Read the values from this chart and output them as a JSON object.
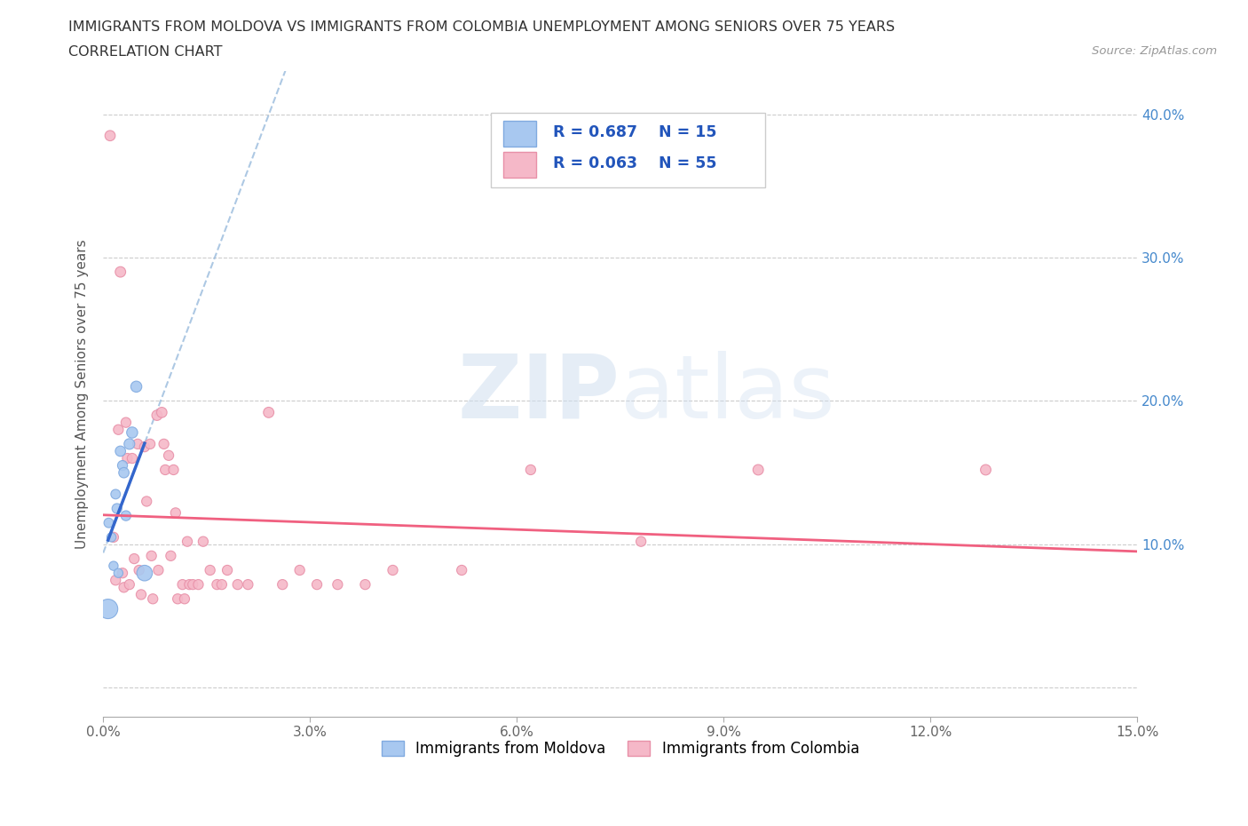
{
  "title_line1": "IMMIGRANTS FROM MOLDOVA VS IMMIGRANTS FROM COLOMBIA UNEMPLOYMENT AMONG SENIORS OVER 75 YEARS",
  "title_line2": "CORRELATION CHART",
  "source": "Source: ZipAtlas.com",
  "ylabel": "Unemployment Among Seniors over 75 years",
  "xlim": [
    0.0,
    0.15
  ],
  "ylim": [
    -0.02,
    0.43
  ],
  "moldova_color": "#a8c8f0",
  "colombia_color": "#f5b8c8",
  "moldova_edge": "#80aae0",
  "colombia_edge": "#e890a8",
  "trend_moldova_color": "#3366cc",
  "trend_colombia_color": "#f06080",
  "dashed_line_color": "#99bbdd",
  "R_moldova": 0.687,
  "N_moldova": 15,
  "R_colombia": 0.063,
  "N_colombia": 55,
  "legend_label_moldova": "Immigrants from Moldova",
  "legend_label_colombia": "Immigrants from Colombia",
  "watermark_zip": "ZIP",
  "watermark_atlas": "atlas",
  "moldova_scatter": [
    [
      0.0008,
      0.115
    ],
    [
      0.0012,
      0.105
    ],
    [
      0.0015,
      0.085
    ],
    [
      0.0018,
      0.135
    ],
    [
      0.002,
      0.125
    ],
    [
      0.0022,
      0.08
    ],
    [
      0.0025,
      0.165
    ],
    [
      0.0028,
      0.155
    ],
    [
      0.003,
      0.15
    ],
    [
      0.0033,
      0.12
    ],
    [
      0.0038,
      0.17
    ],
    [
      0.0042,
      0.178
    ],
    [
      0.0048,
      0.21
    ],
    [
      0.006,
      0.08
    ],
    [
      0.0007,
      0.055
    ]
  ],
  "moldova_sizes": [
    60,
    55,
    55,
    60,
    65,
    55,
    70,
    65,
    70,
    65,
    75,
    80,
    80,
    160,
    250
  ],
  "colombia_scatter": [
    [
      0.001,
      0.385
    ],
    [
      0.0015,
      0.105
    ],
    [
      0.0018,
      0.075
    ],
    [
      0.0022,
      0.18
    ],
    [
      0.0025,
      0.29
    ],
    [
      0.0028,
      0.08
    ],
    [
      0.003,
      0.07
    ],
    [
      0.0033,
      0.185
    ],
    [
      0.0035,
      0.16
    ],
    [
      0.0038,
      0.072
    ],
    [
      0.0042,
      0.16
    ],
    [
      0.0045,
      0.09
    ],
    [
      0.005,
      0.17
    ],
    [
      0.0052,
      0.082
    ],
    [
      0.0055,
      0.065
    ],
    [
      0.006,
      0.168
    ],
    [
      0.0063,
      0.13
    ],
    [
      0.0068,
      0.17
    ],
    [
      0.007,
      0.092
    ],
    [
      0.0072,
      0.062
    ],
    [
      0.0078,
      0.19
    ],
    [
      0.008,
      0.082
    ],
    [
      0.0085,
      0.192
    ],
    [
      0.0088,
      0.17
    ],
    [
      0.009,
      0.152
    ],
    [
      0.0095,
      0.162
    ],
    [
      0.0098,
      0.092
    ],
    [
      0.0102,
      0.152
    ],
    [
      0.0105,
      0.122
    ],
    [
      0.0108,
      0.062
    ],
    [
      0.0115,
      0.072
    ],
    [
      0.0118,
      0.062
    ],
    [
      0.0122,
      0.102
    ],
    [
      0.0125,
      0.072
    ],
    [
      0.013,
      0.072
    ],
    [
      0.0138,
      0.072
    ],
    [
      0.0145,
      0.102
    ],
    [
      0.0155,
      0.082
    ],
    [
      0.0165,
      0.072
    ],
    [
      0.0172,
      0.072
    ],
    [
      0.018,
      0.082
    ],
    [
      0.0195,
      0.072
    ],
    [
      0.021,
      0.072
    ],
    [
      0.024,
      0.192
    ],
    [
      0.026,
      0.072
    ],
    [
      0.0285,
      0.082
    ],
    [
      0.031,
      0.072
    ],
    [
      0.034,
      0.072
    ],
    [
      0.038,
      0.072
    ],
    [
      0.042,
      0.082
    ],
    [
      0.052,
      0.082
    ],
    [
      0.062,
      0.152
    ],
    [
      0.078,
      0.102
    ],
    [
      0.095,
      0.152
    ],
    [
      0.128,
      0.152
    ]
  ],
  "colombia_sizes": [
    70,
    65,
    65,
    65,
    72,
    65,
    65,
    65,
    65,
    65,
    65,
    65,
    65,
    65,
    65,
    65,
    65,
    65,
    65,
    65,
    70,
    65,
    70,
    65,
    65,
    65,
    65,
    65,
    65,
    65,
    65,
    65,
    65,
    65,
    65,
    65,
    65,
    65,
    65,
    65,
    65,
    65,
    65,
    72,
    65,
    65,
    65,
    65,
    65,
    65,
    65,
    65,
    65,
    72,
    72
  ]
}
